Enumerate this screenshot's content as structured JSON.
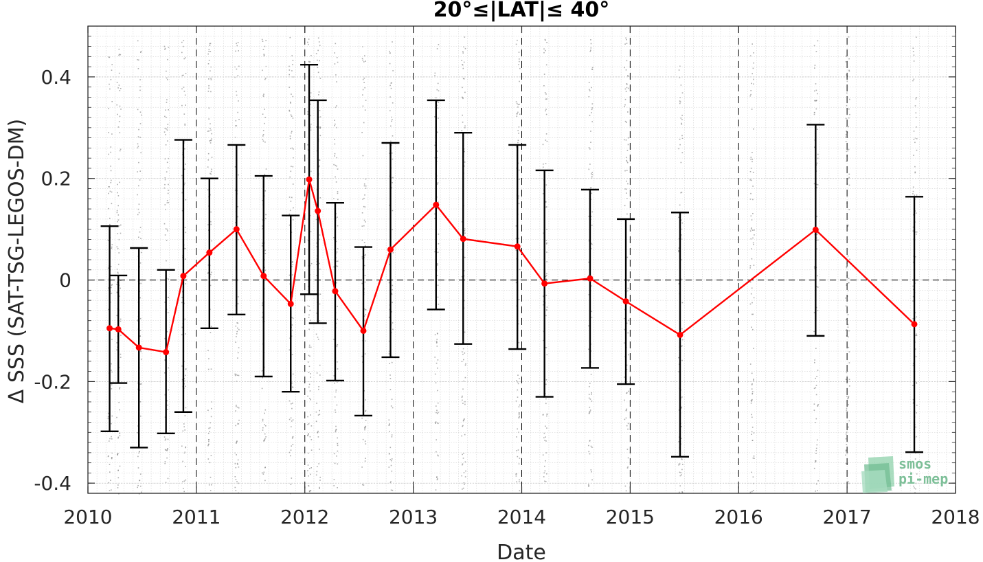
{
  "chart_data": {
    "type": "line",
    "title": "20°≤|LAT|≤ 40°",
    "xlabel": "Date",
    "ylabel": "Δ SSS (SAT-TSG-LEGOS-DM)",
    "xlim": [
      2010,
      2018
    ],
    "ylim": [
      -0.42,
      0.5
    ],
    "x_ticks": [
      2010,
      2011,
      2012,
      2013,
      2014,
      2015,
      2016,
      2017,
      2018
    ],
    "x_tick_labels": [
      "2010",
      "2011",
      "2012",
      "2013",
      "2014",
      "2015",
      "2016",
      "2017",
      "2018"
    ],
    "y_ticks": [
      -0.4,
      -0.2,
      0,
      0.2,
      0.4
    ],
    "y_tick_labels": [
      "-0.4",
      "-0.2",
      "0",
      "0.2",
      "0.4"
    ],
    "grid": "on",
    "series": [
      {
        "color": "#ff0000",
        "x": [
          2010.2,
          2010.28,
          2010.47,
          2010.72,
          2010.88,
          2011.12,
          2011.37,
          2011.62,
          2011.87,
          2012.04,
          2012.12,
          2012.28,
          2012.54,
          2012.79,
          2013.21,
          2013.46,
          2013.96,
          2014.21,
          2014.63,
          2014.96,
          2015.46,
          2016.71,
          2017.62
        ],
        "values": [
          -0.095,
          -0.097,
          -0.133,
          -0.142,
          0.008,
          0.054,
          0.1,
          0.008,
          -0.047,
          0.198,
          0.136,
          -0.022,
          -0.1,
          0.06,
          0.148,
          0.081,
          0.066,
          -0.007,
          0.003,
          -0.042,
          -0.108,
          0.099,
          -0.087
        ],
        "err_high": [
          0.106,
          0.009,
          0.063,
          0.02,
          0.276,
          0.2,
          0.266,
          0.205,
          0.127,
          0.424,
          0.354,
          0.152,
          0.065,
          0.27,
          0.354,
          0.29,
          0.266,
          0.216,
          0.178,
          0.12,
          0.133,
          0.306,
          0.164
        ],
        "err_low": [
          -0.298,
          -0.203,
          -0.33,
          -0.302,
          -0.26,
          -0.095,
          -0.068,
          -0.19,
          -0.22,
          -0.028,
          -0.085,
          -0.198,
          -0.267,
          -0.152,
          -0.058,
          -0.126,
          -0.136,
          -0.23,
          -0.173,
          -0.205,
          -0.348,
          -0.11,
          -0.339
        ]
      }
    ],
    "scatter_background": "grey individual match-up points, vertical streaks at each cruise date",
    "logo": "smos pi-mep"
  }
}
